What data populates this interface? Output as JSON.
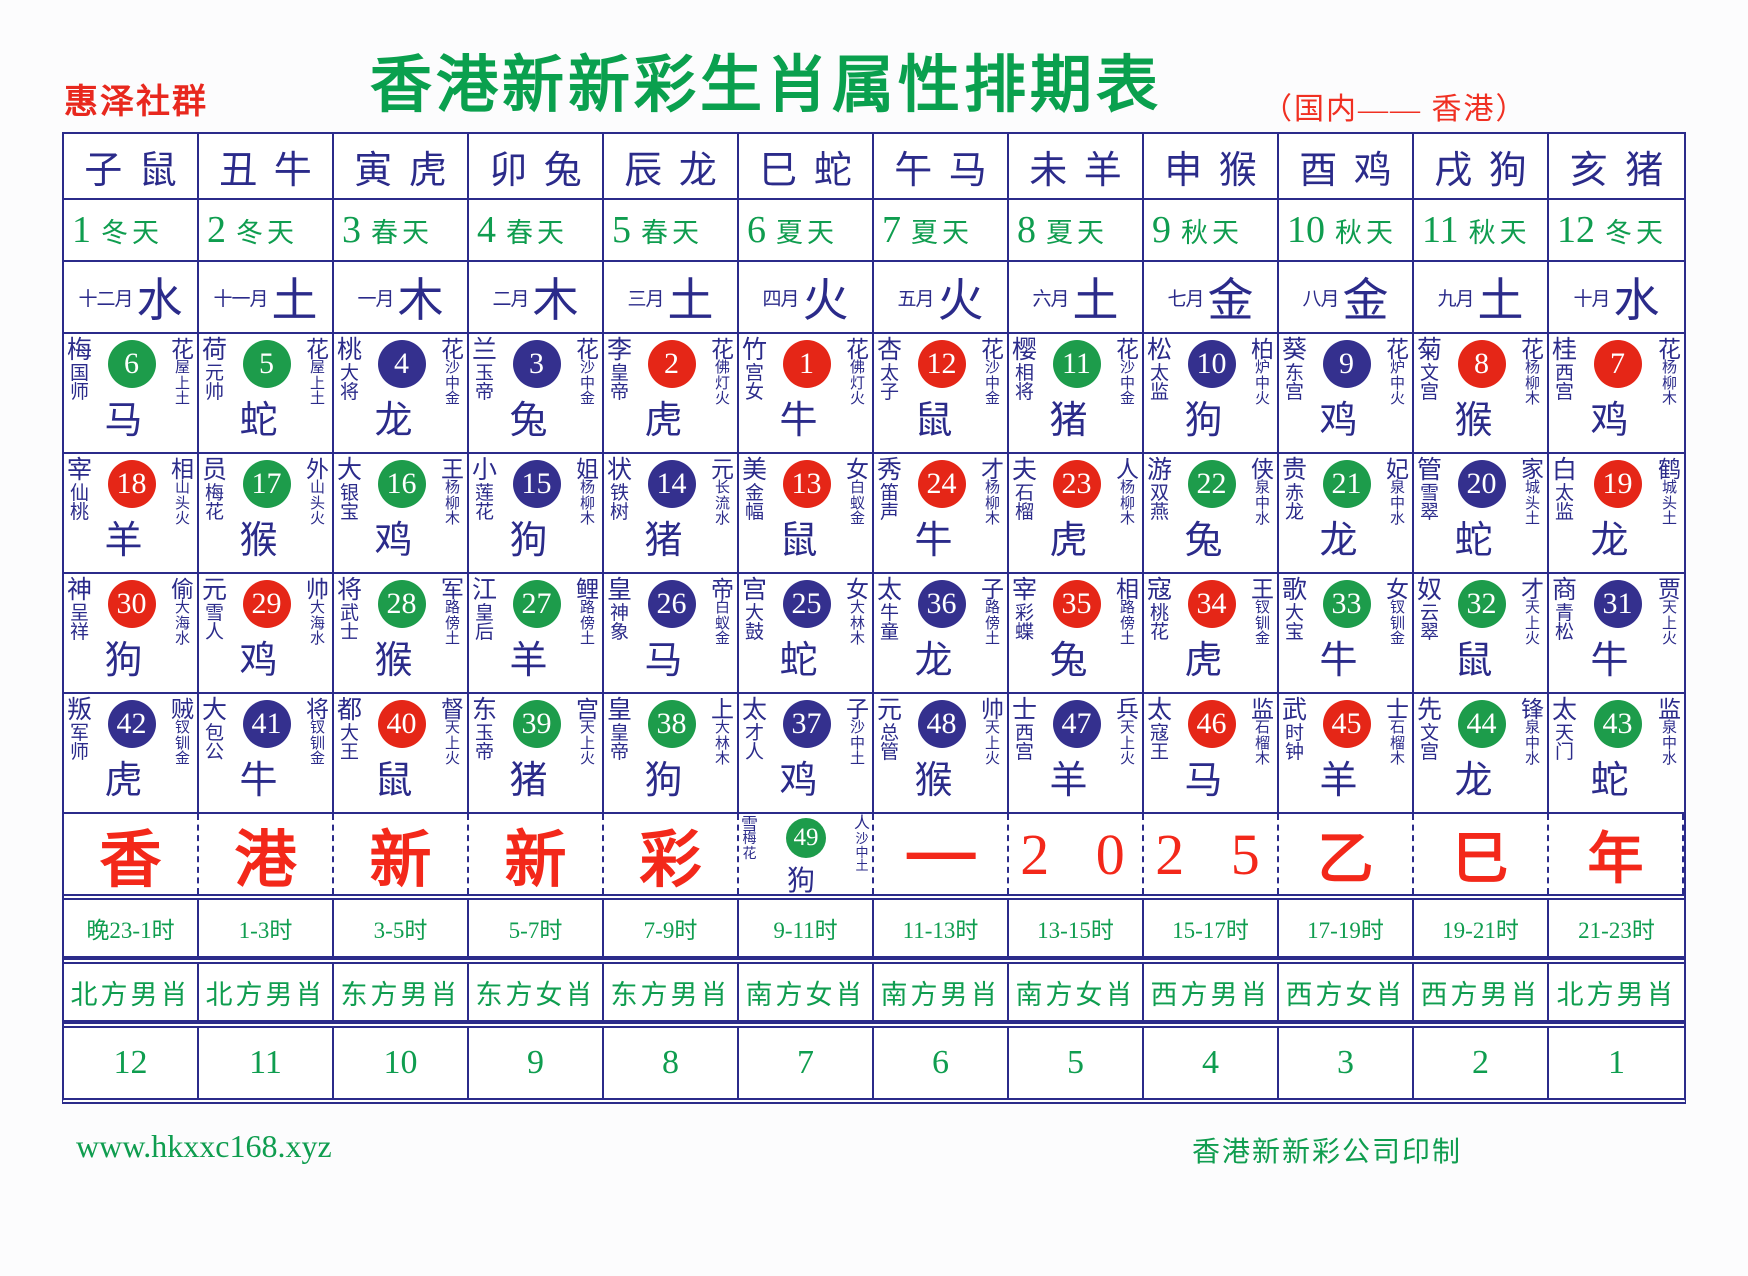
{
  "header": {
    "brand": "惠泽社群",
    "title": "香港新新彩生肖属性排期表",
    "subtitle": "（国内—— 香港）"
  },
  "colors": {
    "navy": "#2b2b8a",
    "green": "#0f9d4f",
    "red": "#f3281a",
    "ball_green": "#1d9c4b",
    "ball_blue": "#34308e",
    "ball_red": "#e52617"
  },
  "zodiac_row": [
    "子鼠",
    "丑牛",
    "寅虎",
    "卯兔",
    "辰龙",
    "巳蛇",
    "午马",
    "未羊",
    "申猴",
    "酉鸡",
    "戌狗",
    "亥猪"
  ],
  "season_row": [
    {
      "num": "1",
      "season": "冬天"
    },
    {
      "num": "2",
      "season": "冬天"
    },
    {
      "num": "3",
      "season": "春天"
    },
    {
      "num": "4",
      "season": "春天"
    },
    {
      "num": "5",
      "season": "春天"
    },
    {
      "num": "6",
      "season": "夏天"
    },
    {
      "num": "7",
      "season": "夏天"
    },
    {
      "num": "8",
      "season": "夏天"
    },
    {
      "num": "9",
      "season": "秋天"
    },
    {
      "num": "10",
      "season": "秋天"
    },
    {
      "num": "11",
      "season": "秋天"
    },
    {
      "num": "12",
      "season": "冬天"
    }
  ],
  "month_row": [
    {
      "month": "十二月",
      "element": "水"
    },
    {
      "month": "十一月",
      "element": "土"
    },
    {
      "month": "一月",
      "element": "木"
    },
    {
      "month": "二月",
      "element": "木"
    },
    {
      "month": "三月",
      "element": "土"
    },
    {
      "month": "四月",
      "element": "火"
    },
    {
      "month": "五月",
      "element": "火"
    },
    {
      "month": "六月",
      "element": "土"
    },
    {
      "month": "七月",
      "element": "金"
    },
    {
      "month": "八月",
      "element": "金"
    },
    {
      "month": "九月",
      "element": "土"
    },
    {
      "month": "十月",
      "element": "水"
    }
  ],
  "main_rows": [
    [
      {
        "left": "梅国师",
        "num": "6",
        "color": "green",
        "animal": "马",
        "right": "花屋上土"
      },
      {
        "left": "荷元帅",
        "num": "5",
        "color": "green",
        "animal": "蛇",
        "right": "花屋上土"
      },
      {
        "left": "桃大将",
        "num": "4",
        "color": "blue",
        "animal": "龙",
        "right": "花沙中金"
      },
      {
        "left": "兰玉帝",
        "num": "3",
        "color": "blue",
        "animal": "兔",
        "right": "花沙中金"
      },
      {
        "left": "李皇帝",
        "num": "2",
        "color": "red",
        "animal": "虎",
        "right": "花佛灯火"
      },
      {
        "left": "竹宫女",
        "num": "1",
        "color": "red",
        "animal": "牛",
        "right": "花佛灯火"
      },
      {
        "left": "杏太子",
        "num": "12",
        "color": "red",
        "animal": "鼠",
        "right": "花沙中金"
      },
      {
        "left": "樱相将",
        "num": "11",
        "color": "green",
        "animal": "猪",
        "right": "花沙中金"
      },
      {
        "left": "松太监",
        "num": "10",
        "color": "blue",
        "animal": "狗",
        "right": "柏炉中火"
      },
      {
        "left": "葵东宫",
        "num": "9",
        "color": "blue",
        "animal": "鸡",
        "right": "花炉中火"
      },
      {
        "left": "菊文宫",
        "num": "8",
        "color": "red",
        "animal": "猴",
        "right": "花杨柳木"
      },
      {
        "left": "桂西宫",
        "num": "7",
        "color": "red",
        "animal": "鸡",
        "right": "花杨柳木"
      }
    ],
    [
      {
        "left": "宰仙桃",
        "num": "18",
        "color": "red",
        "animal": "羊",
        "right": "相山头火"
      },
      {
        "left": "员梅花",
        "num": "17",
        "color": "green",
        "animal": "猴",
        "right": "外山头火"
      },
      {
        "left": "大银宝",
        "num": "16",
        "color": "green",
        "animal": "鸡",
        "right": "王杨柳木"
      },
      {
        "left": "小莲花",
        "num": "15",
        "color": "blue",
        "animal": "狗",
        "right": "姐杨柳木"
      },
      {
        "left": "状铁树",
        "num": "14",
        "color": "blue",
        "animal": "猪",
        "right": "元长流水"
      },
      {
        "left": "美金幅",
        "num": "13",
        "color": "red",
        "animal": "鼠",
        "right": "女白蚁金"
      },
      {
        "left": "秀笛声",
        "num": "24",
        "color": "red",
        "animal": "牛",
        "right": "才杨柳木"
      },
      {
        "left": "夫石榴",
        "num": "23",
        "color": "red",
        "animal": "虎",
        "right": "人杨柳木"
      },
      {
        "left": "游双燕",
        "num": "22",
        "color": "green",
        "animal": "兔",
        "right": "侠泉中水"
      },
      {
        "left": "贵赤龙",
        "num": "21",
        "color": "green",
        "animal": "龙",
        "right": "妃泉中水"
      },
      {
        "left": "管雪翠",
        "num": "20",
        "color": "blue",
        "animal": "蛇",
        "right": "家城头土"
      },
      {
        "left": "白太监",
        "num": "19",
        "color": "red",
        "animal": "龙",
        "right": "鹤城头土"
      }
    ],
    [
      {
        "left": "神呈祥",
        "num": "30",
        "color": "red",
        "animal": "狗",
        "right": "偷大海水"
      },
      {
        "left": "元雪人",
        "num": "29",
        "color": "red",
        "animal": "鸡",
        "right": "帅大海水"
      },
      {
        "left": "将武士",
        "num": "28",
        "color": "green",
        "animal": "猴",
        "right": "军路傍土"
      },
      {
        "left": "江皇后",
        "num": "27",
        "color": "green",
        "animal": "羊",
        "right": "鲤路傍土"
      },
      {
        "left": "皇神象",
        "num": "26",
        "color": "blue",
        "animal": "马",
        "right": "帝白蚁金"
      },
      {
        "left": "宫大鼓",
        "num": "25",
        "color": "blue",
        "animal": "蛇",
        "right": "女大林木"
      },
      {
        "left": "太牛童",
        "num": "36",
        "color": "blue",
        "animal": "龙",
        "right": "子路傍土"
      },
      {
        "left": "宰彩蝶",
        "num": "35",
        "color": "red",
        "animal": "兔",
        "right": "相路傍土"
      },
      {
        "left": "寇桃花",
        "num": "34",
        "color": "red",
        "animal": "虎",
        "right": "王钗钏金"
      },
      {
        "left": "歌大宝",
        "num": "33",
        "color": "green",
        "animal": "牛",
        "right": "女钗钏金"
      },
      {
        "left": "奴云翠",
        "num": "32",
        "color": "green",
        "animal": "鼠",
        "right": "才天上火"
      },
      {
        "left": "商青松",
        "num": "31",
        "color": "blue",
        "animal": "牛",
        "right": "贾天上火"
      }
    ],
    [
      {
        "left": "叛军师",
        "num": "42",
        "color": "blue",
        "animal": "虎",
        "right": "贼钗钏金"
      },
      {
        "left": "大包公",
        "num": "41",
        "color": "blue",
        "animal": "牛",
        "right": "将钗钏金"
      },
      {
        "left": "都大王",
        "num": "40",
        "color": "red",
        "animal": "鼠",
        "right": "督天上火"
      },
      {
        "left": "东玉帝",
        "num": "39",
        "color": "green",
        "animal": "猪",
        "right": "宫天上火"
      },
      {
        "left": "皇皇帝",
        "num": "38",
        "color": "green",
        "animal": "狗",
        "right": "上大林木"
      },
      {
        "left": "太才人",
        "num": "37",
        "color": "blue",
        "animal": "鸡",
        "right": "子沙中土"
      },
      {
        "left": "元总管",
        "num": "48",
        "color": "blue",
        "animal": "猴",
        "right": "帅天上火"
      },
      {
        "left": "士西宫",
        "num": "47",
        "color": "blue",
        "animal": "羊",
        "right": "兵天上火"
      },
      {
        "left": "太寇王",
        "num": "46",
        "color": "red",
        "animal": "马",
        "right": "监石榴木"
      },
      {
        "left": "武时钟",
        "num": "45",
        "color": "red",
        "animal": "羊",
        "right": "士石榴木"
      },
      {
        "left": "先文宫",
        "num": "44",
        "color": "green",
        "animal": "龙",
        "right": "锋泉中水"
      },
      {
        "left": "太天门",
        "num": "43",
        "color": "green",
        "animal": "蛇",
        "right": "监泉中水"
      }
    ]
  ],
  "red_row": [
    {
      "type": "char",
      "value": "香"
    },
    {
      "type": "char",
      "value": "港"
    },
    {
      "type": "char",
      "value": "新"
    },
    {
      "type": "char",
      "value": "新"
    },
    {
      "type": "char",
      "value": "彩"
    },
    {
      "type": "ball",
      "left": "雪梅花",
      "num": "49",
      "color": "green",
      "animal": "狗",
      "right": "人沙中土"
    },
    {
      "type": "dash",
      "value": "一"
    },
    {
      "type": "digits",
      "value": "2 0"
    },
    {
      "type": "digits",
      "value": "2 5"
    },
    {
      "type": "year",
      "value": "乙"
    },
    {
      "type": "year",
      "value": "巳"
    },
    {
      "type": "year",
      "value": "年"
    }
  ],
  "time_row": [
    "晚23-1时",
    "1-3时",
    "3-5时",
    "5-7时",
    "7-9时",
    "9-11时",
    "11-13时",
    "13-15时",
    "15-17时",
    "17-19时",
    "19-21时",
    "21-23时"
  ],
  "direction_row": [
    "北方男肖",
    "北方男肖",
    "东方男肖",
    "东方女肖",
    "东方男肖",
    "南方女肖",
    "南方男肖",
    "南方女肖",
    "西方男肖",
    "西方女肖",
    "西方男肖",
    "北方男肖"
  ],
  "number_row": [
    "12",
    "11",
    "10",
    "9",
    "8",
    "7",
    "6",
    "5",
    "4",
    "3",
    "2",
    "1"
  ],
  "footer": {
    "site": "www.hkxxc168.xyz",
    "printer": "香港新新彩公司印制"
  }
}
